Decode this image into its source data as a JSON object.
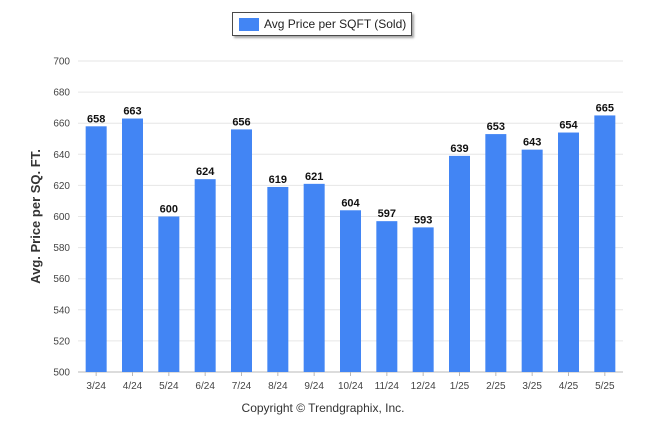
{
  "legend": {
    "label": "Avg Price per SQFT (Sold)"
  },
  "footer": {
    "copyright": "Copyright © Trendgraphix, Inc."
  },
  "chart_data": {
    "type": "bar",
    "categories": [
      "3/24",
      "4/24",
      "5/24",
      "6/24",
      "7/24",
      "8/24",
      "9/24",
      "10/24",
      "11/24",
      "12/24",
      "1/25",
      "2/25",
      "3/25",
      "4/25",
      "5/25"
    ],
    "series": [
      {
        "name": "Avg Price per SQFT (Sold)",
        "values": [
          658,
          663,
          600,
          624,
          656,
          619,
          621,
          604,
          597,
          593,
          639,
          653,
          643,
          654,
          665
        ]
      }
    ],
    "title": "",
    "xlabel": "",
    "ylabel": "Avg. Price per SQ. FT.",
    "ylim": [
      500,
      700
    ],
    "yticks": [
      500,
      520,
      540,
      560,
      580,
      600,
      620,
      640,
      660,
      680,
      700
    ],
    "grid": true,
    "legend_position": "top-center",
    "data_labels": true,
    "bar_color": "#4285F4"
  }
}
